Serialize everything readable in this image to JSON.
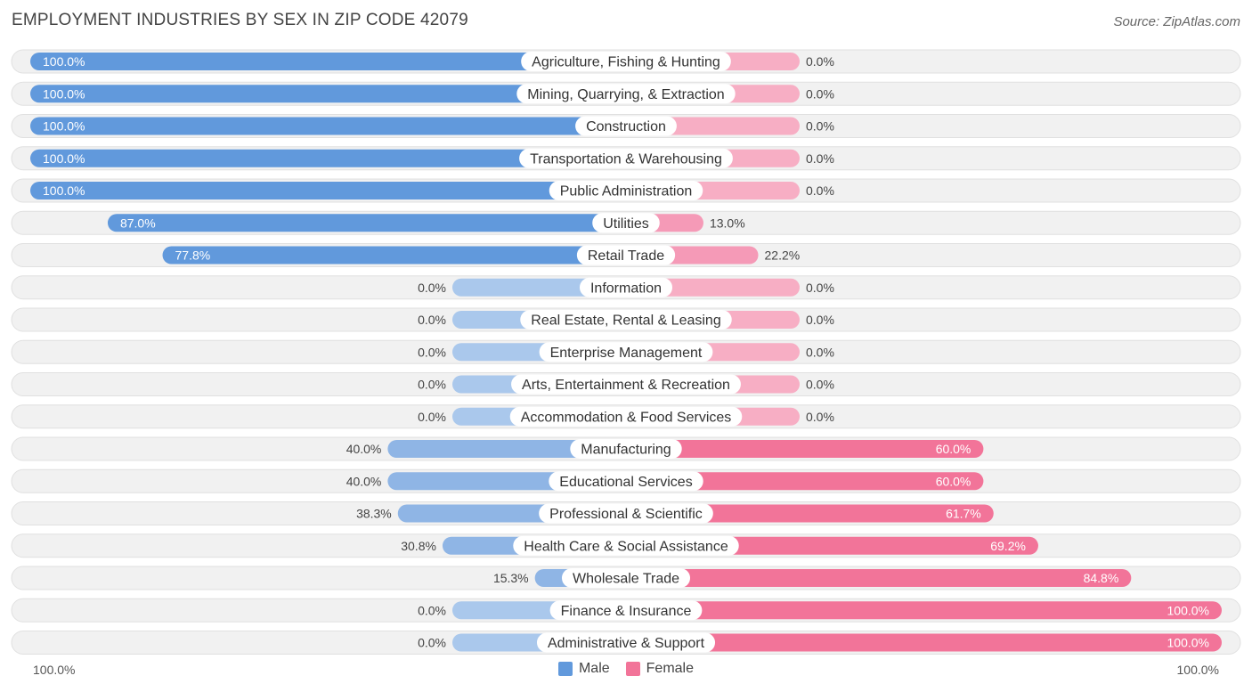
{
  "title": "EMPLOYMENT INDUSTRIES BY SEX IN ZIP CODE 42079",
  "source": "Source: ZipAtlas.com",
  "colors": {
    "male_strong": "#6199dc",
    "male_light": "#aac8ec",
    "female_strong": "#f27499",
    "female_light": "#f7aec4",
    "row_bg": "#f1f1f1"
  },
  "axis": {
    "left_label": "100.0%",
    "right_label": "100.0%"
  },
  "legend": {
    "male": "Male",
    "female": "Female"
  },
  "chart_data": {
    "type": "bar",
    "orientation": "horizontal-diverging",
    "xlim": [
      -100,
      100
    ],
    "categories": [
      "Agriculture, Fishing & Hunting",
      "Mining, Quarrying, & Extraction",
      "Construction",
      "Transportation & Warehousing",
      "Public Administration",
      "Utilities",
      "Retail Trade",
      "Information",
      "Real Estate, Rental & Leasing",
      "Enterprise Management",
      "Arts, Entertainment & Recreation",
      "Accommodation & Food Services",
      "Manufacturing",
      "Educational Services",
      "Professional & Scientific",
      "Health Care & Social Assistance",
      "Wholesale Trade",
      "Finance & Insurance",
      "Administrative & Support"
    ],
    "series": [
      {
        "name": "Male",
        "values": [
          100.0,
          100.0,
          100.0,
          100.0,
          100.0,
          87.0,
          77.8,
          0.0,
          0.0,
          0.0,
          0.0,
          0.0,
          40.0,
          40.0,
          38.3,
          30.8,
          15.3,
          0.0,
          0.0
        ],
        "labels": [
          "100.0%",
          "100.0%",
          "100.0%",
          "100.0%",
          "100.0%",
          "87.0%",
          "77.8%",
          "0.0%",
          "0.0%",
          "0.0%",
          "0.0%",
          "0.0%",
          "40.0%",
          "40.0%",
          "38.3%",
          "30.8%",
          "15.3%",
          "0.0%",
          "0.0%"
        ]
      },
      {
        "name": "Female",
        "values": [
          0.0,
          0.0,
          0.0,
          0.0,
          0.0,
          13.0,
          22.2,
          0.0,
          0.0,
          0.0,
          0.0,
          0.0,
          60.0,
          60.0,
          61.7,
          69.2,
          84.8,
          100.0,
          100.0
        ],
        "labels": [
          "0.0%",
          "0.0%",
          "0.0%",
          "0.0%",
          "0.0%",
          "13.0%",
          "22.2%",
          "0.0%",
          "0.0%",
          "0.0%",
          "0.0%",
          "0.0%",
          "60.0%",
          "60.0%",
          "61.7%",
          "69.2%",
          "84.8%",
          "100.0%",
          "100.0%"
        ]
      }
    ],
    "legend_position": "bottom-center"
  }
}
